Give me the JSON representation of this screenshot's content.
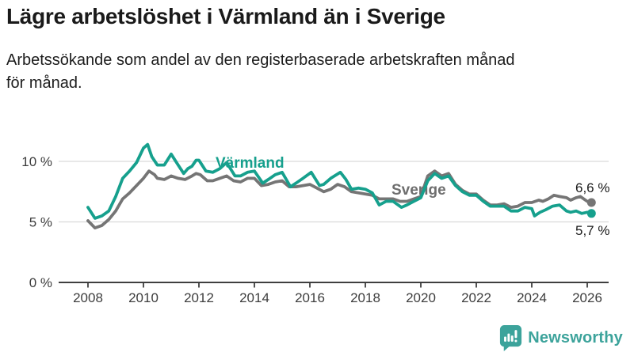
{
  "header": {
    "title": "Lägre arbetslöshet i Värmland än i Sverige",
    "subtitle": {
      "line1": "Arbetssökande som andel av den registerbaserade arbetskraften månad",
      "line2": "för månad."
    }
  },
  "chart_data": {
    "type": "line",
    "title": "Lägre arbetslöshet i Värmland än i Sverige",
    "subtitle": "Arbetssökande som andel av den registerbaserade arbetskraften månad för månad.",
    "grid": "horizontal-on",
    "legend": "inline-series-labels",
    "x_axis": {
      "label": "",
      "range": [
        2007.85,
        2026.8
      ],
      "ticks": [
        2008,
        2010,
        2012,
        2014,
        2016,
        2018,
        2020,
        2022,
        2024,
        2026
      ],
      "tick_labels": [
        "2008",
        "2010",
        "2012",
        "2014",
        "2016",
        "2018",
        "2020",
        "2022",
        "2024",
        "2026"
      ]
    },
    "y_axis": {
      "label": "",
      "unit": "%",
      "range": [
        0,
        12
      ],
      "ticks": [
        0,
        5,
        10
      ],
      "tick_labels": [
        "0 %",
        "5 %",
        "10 %"
      ]
    },
    "colors": {
      "grid": "#d9d9d9",
      "axis": "#3f3f3f",
      "axis_text": "#3d3d3d",
      "end_label_text": "#1a1a1a"
    },
    "series": [
      {
        "id": "sverige",
        "name": "Sverige",
        "color": "#757575",
        "label_color": "#6e6e6e",
        "end_value": 6.6,
        "end_label": "6,6 %",
        "points": [
          [
            2008.0,
            5.1
          ],
          [
            2008.25,
            4.5
          ],
          [
            2008.5,
            4.7
          ],
          [
            2008.75,
            5.2
          ],
          [
            2009.0,
            5.9
          ],
          [
            2009.25,
            6.9
          ],
          [
            2009.5,
            7.4
          ],
          [
            2009.75,
            8.0
          ],
          [
            2010.0,
            8.6
          ],
          [
            2010.2,
            9.2
          ],
          [
            2010.4,
            8.9
          ],
          [
            2010.5,
            8.6
          ],
          [
            2010.75,
            8.5
          ],
          [
            2011.0,
            8.8
          ],
          [
            2011.25,
            8.6
          ],
          [
            2011.5,
            8.5
          ],
          [
            2011.75,
            8.8
          ],
          [
            2011.9,
            9.0
          ],
          [
            2012.05,
            8.9
          ],
          [
            2012.3,
            8.4
          ],
          [
            2012.5,
            8.4
          ],
          [
            2012.75,
            8.6
          ],
          [
            2013.0,
            8.8
          ],
          [
            2013.25,
            8.4
          ],
          [
            2013.5,
            8.3
          ],
          [
            2013.75,
            8.6
          ],
          [
            2014.0,
            8.6
          ],
          [
            2014.25,
            8.0
          ],
          [
            2014.5,
            8.1
          ],
          [
            2014.75,
            8.3
          ],
          [
            2015.0,
            8.4
          ],
          [
            2015.25,
            7.9
          ],
          [
            2015.5,
            7.9
          ],
          [
            2015.75,
            8.0
          ],
          [
            2016.0,
            8.1
          ],
          [
            2016.25,
            7.8
          ],
          [
            2016.5,
            7.5
          ],
          [
            2016.75,
            7.7
          ],
          [
            2017.0,
            8.1
          ],
          [
            2017.25,
            7.9
          ],
          [
            2017.5,
            7.5
          ],
          [
            2017.75,
            7.4
          ],
          [
            2018.0,
            7.3
          ],
          [
            2018.25,
            7.2
          ],
          [
            2018.5,
            6.9
          ],
          [
            2018.75,
            6.9
          ],
          [
            2019.0,
            6.9
          ],
          [
            2019.25,
            6.7
          ],
          [
            2019.5,
            6.7
          ],
          [
            2019.75,
            6.9
          ],
          [
            2020.0,
            7.1
          ],
          [
            2020.25,
            8.8
          ],
          [
            2020.5,
            9.2
          ],
          [
            2020.75,
            8.8
          ],
          [
            2021.0,
            9.0
          ],
          [
            2021.25,
            8.1
          ],
          [
            2021.5,
            7.6
          ],
          [
            2021.75,
            7.3
          ],
          [
            2022.0,
            7.3
          ],
          [
            2022.25,
            6.8
          ],
          [
            2022.5,
            6.4
          ],
          [
            2022.75,
            6.4
          ],
          [
            2023.0,
            6.5
          ],
          [
            2023.25,
            6.2
          ],
          [
            2023.5,
            6.3
          ],
          [
            2023.75,
            6.6
          ],
          [
            2024.0,
            6.6
          ],
          [
            2024.25,
            6.8
          ],
          [
            2024.4,
            6.7
          ],
          [
            2024.6,
            6.9
          ],
          [
            2024.8,
            7.2
          ],
          [
            2025.0,
            7.1
          ],
          [
            2025.25,
            7.0
          ],
          [
            2025.4,
            6.8
          ],
          [
            2025.6,
            7.0
          ],
          [
            2025.75,
            7.1
          ],
          [
            2026.0,
            6.7
          ],
          [
            2026.15,
            6.6
          ]
        ]
      },
      {
        "id": "varmland",
        "name": "Värmland",
        "color": "#16a08d",
        "label_color": "#16a08d",
        "end_value": 5.7,
        "end_label": "5,7 %",
        "points": [
          [
            2008.0,
            6.2
          ],
          [
            2008.25,
            5.3
          ],
          [
            2008.5,
            5.5
          ],
          [
            2008.75,
            5.9
          ],
          [
            2009.0,
            7.1
          ],
          [
            2009.25,
            8.6
          ],
          [
            2009.5,
            9.2
          ],
          [
            2009.75,
            9.9
          ],
          [
            2010.0,
            11.1
          ],
          [
            2010.15,
            11.4
          ],
          [
            2010.3,
            10.4
          ],
          [
            2010.5,
            9.7
          ],
          [
            2010.75,
            9.7
          ],
          [
            2011.0,
            10.6
          ],
          [
            2011.25,
            9.7
          ],
          [
            2011.45,
            9.0
          ],
          [
            2011.6,
            9.4
          ],
          [
            2011.75,
            9.6
          ],
          [
            2011.9,
            10.1
          ],
          [
            2012.0,
            10.1
          ],
          [
            2012.25,
            9.2
          ],
          [
            2012.5,
            9.1
          ],
          [
            2012.75,
            9.4
          ],
          [
            2013.0,
            9.9
          ],
          [
            2013.3,
            8.8
          ],
          [
            2013.5,
            8.8
          ],
          [
            2013.75,
            9.1
          ],
          [
            2014.0,
            9.2
          ],
          [
            2014.3,
            8.2
          ],
          [
            2014.5,
            8.5
          ],
          [
            2014.75,
            8.9
          ],
          [
            2015.0,
            9.1
          ],
          [
            2015.3,
            7.9
          ],
          [
            2015.5,
            8.2
          ],
          [
            2015.75,
            8.6
          ],
          [
            2016.05,
            9.1
          ],
          [
            2016.35,
            8.0
          ],
          [
            2016.5,
            8.1
          ],
          [
            2016.75,
            8.6
          ],
          [
            2017.1,
            9.1
          ],
          [
            2017.3,
            8.5
          ],
          [
            2017.5,
            7.7
          ],
          [
            2017.75,
            7.8
          ],
          [
            2018.0,
            7.7
          ],
          [
            2018.25,
            7.4
          ],
          [
            2018.5,
            6.4
          ],
          [
            2018.75,
            6.7
          ],
          [
            2019.0,
            6.7
          ],
          [
            2019.3,
            6.2
          ],
          [
            2019.5,
            6.4
          ],
          [
            2019.75,
            6.7
          ],
          [
            2020.0,
            7.0
          ],
          [
            2020.25,
            8.4
          ],
          [
            2020.5,
            9.0
          ],
          [
            2020.75,
            8.6
          ],
          [
            2021.0,
            8.8
          ],
          [
            2021.25,
            8.0
          ],
          [
            2021.5,
            7.5
          ],
          [
            2021.75,
            7.2
          ],
          [
            2022.0,
            7.2
          ],
          [
            2022.25,
            6.7
          ],
          [
            2022.5,
            6.3
          ],
          [
            2022.75,
            6.3
          ],
          [
            2023.0,
            6.3
          ],
          [
            2023.25,
            5.9
          ],
          [
            2023.5,
            5.9
          ],
          [
            2023.75,
            6.2
          ],
          [
            2024.0,
            6.1
          ],
          [
            2024.1,
            5.5
          ],
          [
            2024.3,
            5.8
          ],
          [
            2024.5,
            6.0
          ],
          [
            2024.75,
            6.3
          ],
          [
            2025.0,
            6.4
          ],
          [
            2025.25,
            5.9
          ],
          [
            2025.4,
            5.8
          ],
          [
            2025.6,
            5.9
          ],
          [
            2025.8,
            5.7
          ],
          [
            2026.0,
            5.8
          ],
          [
            2026.15,
            5.7
          ]
        ]
      }
    ]
  },
  "footer": {
    "brand": "Newsworthy",
    "brand_color": "#3ca39b"
  }
}
